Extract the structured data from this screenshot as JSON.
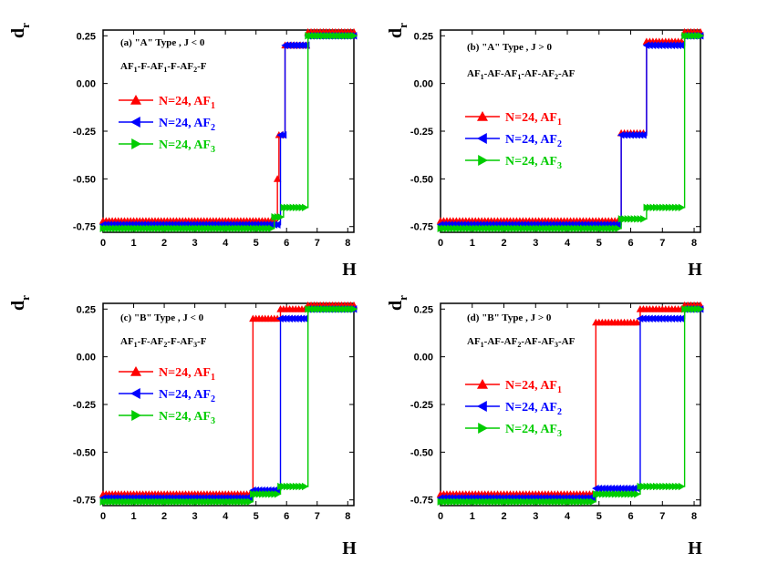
{
  "colors": {
    "AF1": "#ff0000",
    "AF2": "#0000ff",
    "AF3": "#00cc00"
  },
  "chart_data": [
    {
      "type": "line",
      "title": "(a) \"A\" Type , J < 0",
      "config": [
        "AF",
        "1",
        "-F-AF",
        "1",
        "-F-AF",
        "2",
        "-F"
      ],
      "xlabel": "H",
      "ylabel": "d",
      "ylabel_sub": "r",
      "xlim": [
        0,
        8.2
      ],
      "ylim": [
        -0.78,
        0.28
      ],
      "xticks": [
        "0",
        "1",
        "2",
        "3",
        "4",
        "5",
        "6",
        "7",
        "8"
      ],
      "yticks": [
        "0.25",
        "0.00",
        "-0.25",
        "-0.50",
        "-0.75"
      ],
      "legend_position": "center-left",
      "series": [
        {
          "name": "N=24, AF",
          "sub": "1",
          "marker": "triangle-up",
          "color_key": "AF1",
          "steps": [
            [
              0,
              -0.72
            ],
            [
              5.7,
              -0.5
            ],
            [
              5.75,
              -0.27
            ],
            [
              5.95,
              0.2
            ],
            [
              6.7,
              0.27
            ],
            [
              8.2,
              0.27
            ]
          ]
        },
        {
          "name": "N=24, AF",
          "sub": "2",
          "marker": "triangle-left",
          "color_key": "AF2",
          "steps": [
            [
              0,
              -0.74
            ],
            [
              5.8,
              -0.27
            ],
            [
              5.95,
              0.2
            ],
            [
              6.7,
              0.25
            ],
            [
              8.2,
              0.25
            ]
          ]
        },
        {
          "name": "N=24, AF",
          "sub": "3",
          "marker": "triangle-right",
          "color_key": "AF3",
          "steps": [
            [
              0,
              -0.76
            ],
            [
              5.6,
              -0.7
            ],
            [
              5.9,
              -0.65
            ],
            [
              6.7,
              0.25
            ],
            [
              8.2,
              0.25
            ]
          ]
        }
      ]
    },
    {
      "type": "line",
      "title": "(b) \"A\" Type , J > 0",
      "config": [
        "AF",
        "1",
        "-AF-AF",
        "1",
        "-AF-AF",
        "2",
        "-AF"
      ],
      "xlabel": "H",
      "ylabel": "d",
      "ylabel_sub": "r",
      "xlim": [
        0,
        8.2
      ],
      "ylim": [
        -0.78,
        0.28
      ],
      "xticks": [
        "0",
        "1",
        "2",
        "3",
        "4",
        "5",
        "6",
        "7",
        "8"
      ],
      "yticks": [
        "0.25",
        "0.00",
        "-0.25",
        "-0.50",
        "-0.75"
      ],
      "legend_position": "center-left",
      "series": [
        {
          "name": "N=24, AF",
          "sub": "1",
          "marker": "triangle-up",
          "color_key": "AF1",
          "steps": [
            [
              0,
              -0.72
            ],
            [
              5.7,
              -0.26
            ],
            [
              6.5,
              0.22
            ],
            [
              7.7,
              0.27
            ],
            [
              8.2,
              0.27
            ]
          ]
        },
        {
          "name": "N=24, AF",
          "sub": "2",
          "marker": "triangle-left",
          "color_key": "AF2",
          "steps": [
            [
              0,
              -0.74
            ],
            [
              5.7,
              -0.27
            ],
            [
              6.5,
              0.2
            ],
            [
              7.7,
              0.25
            ],
            [
              8.2,
              0.25
            ]
          ]
        },
        {
          "name": "N=24, AF",
          "sub": "3",
          "marker": "triangle-right",
          "color_key": "AF3",
          "steps": [
            [
              0,
              -0.76
            ],
            [
              5.7,
              -0.71
            ],
            [
              6.5,
              -0.65
            ],
            [
              7.7,
              0.25
            ],
            [
              8.2,
              0.25
            ]
          ]
        }
      ]
    },
    {
      "type": "line",
      "title": "(c) \"B\" Type , J < 0",
      "config": [
        "AF",
        "1",
        "-F-AF",
        "2",
        "-F-AF",
        "3",
        "-F"
      ],
      "xlabel": "H",
      "ylabel": "d",
      "ylabel_sub": "r",
      "xlim": [
        0,
        8.2
      ],
      "ylim": [
        -0.78,
        0.28
      ],
      "xticks": [
        "0",
        "1",
        "2",
        "3",
        "4",
        "5",
        "6",
        "7",
        "8"
      ],
      "yticks": [
        "0.25",
        "0.00",
        "-0.25",
        "-0.50",
        "-0.75"
      ],
      "legend_position": "center-left",
      "series": [
        {
          "name": "N=24, AF",
          "sub": "1",
          "marker": "triangle-up",
          "color_key": "AF1",
          "steps": [
            [
              0,
              -0.72
            ],
            [
              4.9,
              0.2
            ],
            [
              5.8,
              0.25
            ],
            [
              6.7,
              0.27
            ],
            [
              8.2,
              0.27
            ]
          ]
        },
        {
          "name": "N=24, AF",
          "sub": "2",
          "marker": "triangle-left",
          "color_key": "AF2",
          "steps": [
            [
              0,
              -0.74
            ],
            [
              4.9,
              -0.7
            ],
            [
              5.8,
              0.2
            ],
            [
              6.7,
              0.25
            ],
            [
              8.2,
              0.25
            ]
          ]
        },
        {
          "name": "N=24, AF",
          "sub": "3",
          "marker": "triangle-right",
          "color_key": "AF3",
          "steps": [
            [
              0,
              -0.76
            ],
            [
              4.9,
              -0.72
            ],
            [
              5.8,
              -0.68
            ],
            [
              6.7,
              0.25
            ],
            [
              8.2,
              0.25
            ]
          ]
        }
      ]
    },
    {
      "type": "line",
      "title": "(d) \"B\" Type , J > 0",
      "config": [
        "AF",
        "1",
        "-AF-AF",
        "2",
        "-AF-AF",
        "3",
        "-AF"
      ],
      "xlabel": "H",
      "ylabel": "d",
      "ylabel_sub": "r",
      "xlim": [
        0,
        8.2
      ],
      "ylim": [
        -0.78,
        0.28
      ],
      "xticks": [
        "0",
        "1",
        "2",
        "3",
        "4",
        "5",
        "6",
        "7",
        "8"
      ],
      "yticks": [
        "0.25",
        "0.00",
        "-0.25",
        "-0.50",
        "-0.75"
      ],
      "legend_position": "center-left",
      "series": [
        {
          "name": "N=24, AF",
          "sub": "1",
          "marker": "triangle-up",
          "color_key": "AF1",
          "steps": [
            [
              0,
              -0.72
            ],
            [
              4.9,
              0.18
            ],
            [
              6.3,
              0.25
            ],
            [
              7.7,
              0.27
            ],
            [
              8.2,
              0.27
            ]
          ]
        },
        {
          "name": "N=24, AF",
          "sub": "2",
          "marker": "triangle-left",
          "color_key": "AF2",
          "steps": [
            [
              0,
              -0.74
            ],
            [
              4.9,
              -0.69
            ],
            [
              6.3,
              0.2
            ],
            [
              7.7,
              0.25
            ],
            [
              8.2,
              0.25
            ]
          ]
        },
        {
          "name": "N=24, AF",
          "sub": "3",
          "marker": "triangle-right",
          "color_key": "AF3",
          "steps": [
            [
              0,
              -0.76
            ],
            [
              4.9,
              -0.72
            ],
            [
              6.3,
              -0.68
            ],
            [
              7.7,
              0.25
            ],
            [
              8.2,
              0.25
            ]
          ]
        }
      ]
    }
  ]
}
